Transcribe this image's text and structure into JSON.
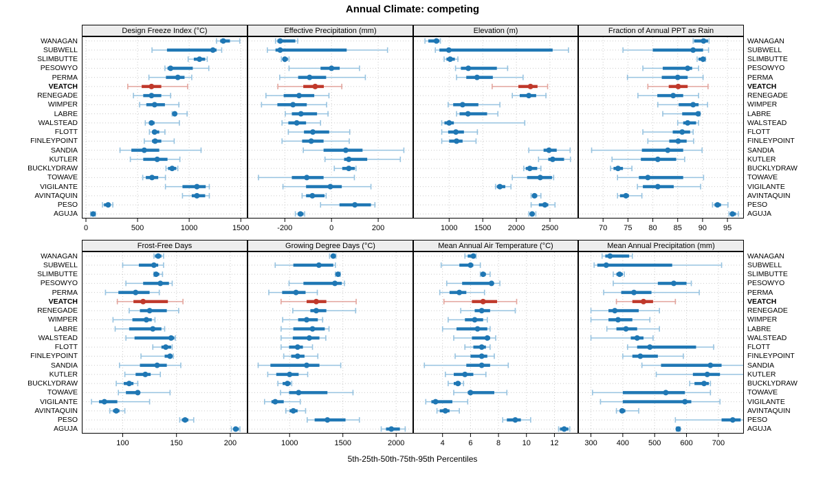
{
  "figure": {
    "title": "Annual Climate: competing",
    "caption": "5th-25th-50th-75th-95th Percentiles"
  },
  "percentile_labels": [
    "5th",
    "25th",
    "50th",
    "75th",
    "95th"
  ],
  "stations": [
    "WANAGAN",
    "SUBWELL",
    "SLIMBUTTE",
    "PESOWYO",
    "PERMA",
    "VEATCH",
    "RENEGADE",
    "WIMPER",
    "LABRE",
    "WALSTEAD",
    "FLOTT",
    "FINLEYPOINT",
    "SANDIA",
    "KUTLER",
    "BUCKLYDRAW",
    "TOWAVE",
    "VIGILANTE",
    "AVINTAQUIN",
    "PESO",
    "AGUJA"
  ],
  "highlight_station": "VEATCH",
  "colors": {
    "blue": "#1f77b4",
    "blue_light": "#97c3e0",
    "red": "#c0392b",
    "red_light": "#e3a59d",
    "header_bg": "#ededed",
    "grid": "#c9c9c9",
    "border": "#000000"
  },
  "chart_data": [
    {
      "type": "dot-interval",
      "title": "Design Freeze Index (°C)",
      "ticks": [
        0,
        500,
        1000,
        1500
      ],
      "xlim": [
        -40,
        1565
      ],
      "values": [
        [
          1265,
          1300,
          1330,
          1395,
          1490
        ],
        [
          640,
          785,
          1230,
          1265,
          1315
        ],
        [
          990,
          1045,
          1100,
          1155,
          1175
        ],
        [
          765,
          790,
          820,
          1035,
          1190
        ],
        [
          610,
          775,
          890,
          955,
          1025
        ],
        [
          405,
          540,
          635,
          730,
          985
        ],
        [
          460,
          555,
          635,
          730,
          820
        ],
        [
          520,
          585,
          665,
          765,
          900
        ],
        [
          835,
          845,
          860,
          880,
          980
        ],
        [
          575,
          610,
          635,
          665,
          905
        ],
        [
          615,
          640,
          665,
          710,
          765
        ],
        [
          565,
          640,
          670,
          730,
          855
        ],
        [
          330,
          440,
          565,
          710,
          1115
        ],
        [
          430,
          555,
          690,
          790,
          910
        ],
        [
          775,
          795,
          835,
          875,
          890
        ],
        [
          550,
          580,
          640,
          700,
          770
        ],
        [
          770,
          935,
          1075,
          1160,
          1195
        ],
        [
          935,
          1025,
          1075,
          1155,
          1195
        ],
        [
          160,
          175,
          215,
          240,
          260
        ],
        [
          45,
          58,
          70,
          82,
          92
        ]
      ]
    },
    {
      "type": "dot-interval",
      "title": "Effective Precipitation (mm)",
      "ticks": [
        -200,
        0,
        200
      ],
      "xlim": [
        -360,
        350
      ],
      "values": [
        [
          -240,
          -232,
          -220,
          -155,
          -145
        ],
        [
          -275,
          -240,
          -220,
          65,
          240
        ],
        [
          -215,
          -208,
          -200,
          -187,
          -182
        ],
        [
          -182,
          -47,
          0,
          35,
          120
        ],
        [
          -222,
          -143,
          -94,
          -23,
          145
        ],
        [
          -230,
          -121,
          -70,
          -33,
          44
        ],
        [
          -281,
          -205,
          -139,
          -74,
          -11
        ],
        [
          -300,
          -232,
          -165,
          -106,
          -21
        ],
        [
          -198,
          -170,
          -131,
          -62,
          -15
        ],
        [
          -212,
          -185,
          -149,
          -109,
          -47
        ],
        [
          -185,
          -118,
          -80,
          -10,
          78
        ],
        [
          -212,
          -126,
          -87,
          -34,
          76
        ],
        [
          -121,
          -34,
          61,
          133,
          310
        ],
        [
          -28,
          54,
          74,
          153,
          295
        ],
        [
          12,
          46,
          74,
          100,
          105
        ],
        [
          -313,
          -170,
          -106,
          -34,
          98
        ],
        [
          -208,
          -109,
          -5,
          44,
          169
        ],
        [
          -126,
          -109,
          -82,
          -30,
          -23
        ],
        [
          -47,
          34,
          100,
          169,
          186
        ],
        [
          -155,
          -145,
          -133,
          -120,
          -115
        ]
      ]
    },
    {
      "type": "dot-interval",
      "title": "Elevation (m)",
      "ticks": [
        1000,
        1500,
        2000,
        2500
      ],
      "xlim": [
        465,
        2920
      ],
      "values": [
        [
          640,
          690,
          810,
          855,
          870
        ],
        [
          795,
          855,
          995,
          2540,
          2775
        ],
        [
          925,
          960,
          1015,
          1085,
          1130
        ],
        [
          1095,
          1175,
          1285,
          1710,
          1870
        ],
        [
          1110,
          1255,
          1415,
          1650,
          2100
        ],
        [
          1640,
          2030,
          2210,
          2315,
          2465
        ],
        [
          1940,
          2050,
          2185,
          2295,
          2440
        ],
        [
          985,
          1060,
          1200,
          1435,
          1755
        ],
        [
          1110,
          1155,
          1280,
          1565,
          1725
        ],
        [
          890,
          930,
          1000,
          1070,
          2125
        ],
        [
          890,
          985,
          1100,
          1220,
          1420
        ],
        [
          890,
          1000,
          1110,
          1200,
          1400
        ],
        [
          2185,
          2405,
          2485,
          2600,
          2800
        ],
        [
          2330,
          2475,
          2540,
          2710,
          2805
        ],
        [
          2110,
          2140,
          2200,
          2310,
          2365
        ],
        [
          1940,
          2160,
          2355,
          2530,
          2555
        ],
        [
          1690,
          1710,
          1755,
          1835,
          1920
        ],
        [
          2220,
          2235,
          2270,
          2310,
          2365
        ],
        [
          2220,
          2335,
          2425,
          2475,
          2575
        ],
        [
          2185,
          2200,
          2235,
          2270,
          2290
        ]
      ]
    },
    {
      "type": "dot-interval",
      "title": "Fraction of Annual PPT as Rain",
      "ticks": [
        70,
        75,
        80,
        85,
        90,
        95
      ],
      "xlim": [
        65,
        98.3
      ],
      "values": [
        [
          88.1,
          88.3,
          90.2,
          91.1,
          91.3
        ],
        [
          74,
          80,
          88.1,
          90.1,
          91.2
        ],
        [
          88.9,
          89.2,
          90.1,
          90.4,
          90.6
        ],
        [
          78,
          82,
          87,
          87.9,
          89.2
        ],
        [
          74.9,
          81.8,
          85,
          87,
          90.1
        ],
        [
          79,
          83.2,
          85.1,
          87,
          91.1
        ],
        [
          77,
          80.9,
          84.1,
          86.1,
          89.2
        ],
        [
          81,
          85.2,
          88.1,
          89.2,
          91
        ],
        [
          82,
          85.9,
          89.1,
          89.3,
          89.5
        ],
        [
          85,
          86.1,
          87,
          88.7,
          89.2
        ],
        [
          78,
          84,
          85.9,
          87.5,
          88.1
        ],
        [
          79,
          83.3,
          85.1,
          86.8,
          88.2
        ],
        [
          67.7,
          77.8,
          83,
          86.1,
          89.9
        ],
        [
          71.8,
          77.6,
          81,
          84.7,
          86.4
        ],
        [
          71.5,
          72.1,
          73,
          74,
          75.8
        ],
        [
          72.9,
          77.2,
          79,
          86.1,
          90.2
        ],
        [
          76.9,
          78,
          81,
          84.2,
          89.6
        ],
        [
          72.9,
          73.4,
          74.6,
          75.2,
          77.8
        ],
        [
          92,
          92.4,
          93,
          93.7,
          95.1
        ],
        [
          95.3,
          95.6,
          96,
          96.7,
          97.2
        ]
      ]
    },
    {
      "type": "dot-interval",
      "title": "Frost-Free Days",
      "ticks": [
        100,
        150,
        200
      ],
      "xlim": [
        62,
        216
      ],
      "values": [
        [
          129,
          130,
          133,
          136,
          138
        ],
        [
          100,
          115,
          129,
          133,
          138
        ],
        [
          129,
          130,
          131,
          134,
          137
        ],
        [
          103,
          119,
          135,
          143,
          146
        ],
        [
          84,
          96,
          112,
          125,
          134
        ],
        [
          95,
          110,
          119,
          142,
          156
        ],
        [
          106,
          116,
          125,
          141,
          152
        ],
        [
          91,
          109,
          122,
          127,
          130
        ],
        [
          93,
          106,
          128,
          136,
          139
        ],
        [
          103,
          111,
          145,
          148,
          149
        ],
        [
          128,
          136,
          140,
          145,
          146
        ],
        [
          117,
          139,
          144,
          146,
          147
        ],
        [
          97,
          116,
          132,
          141,
          154
        ],
        [
          102,
          112,
          121,
          126,
          135
        ],
        [
          94,
          101,
          106,
          110,
          114
        ],
        [
          96,
          103,
          114,
          116,
          144
        ],
        [
          71,
          78,
          83,
          95,
          125
        ],
        [
          88,
          91,
          94,
          97,
          102
        ],
        [
          153,
          155,
          158,
          161,
          166
        ],
        [
          201,
          203,
          205,
          208,
          209
        ]
      ]
    },
    {
      "type": "dot-interval",
      "title": "Growing Degree Days (°C)",
      "ticks": [
        1000,
        1500,
        2000
      ],
      "xlim": [
        605,
        2160
      ],
      "values": [
        [
          1375,
          1390,
          1410,
          1430,
          1435
        ],
        [
          865,
          1035,
          1275,
          1410,
          1430
        ],
        [
          1430,
          1440,
          1455,
          1470,
          1475
        ],
        [
          995,
          1130,
          1425,
          1490,
          1515
        ],
        [
          805,
          930,
          1060,
          1150,
          1260
        ],
        [
          920,
          1160,
          1250,
          1345,
          1625
        ],
        [
          1030,
          1195,
          1250,
          1345,
          1620
        ],
        [
          935,
          1080,
          1160,
          1265,
          1310
        ],
        [
          920,
          1035,
          1215,
          1330,
          1370
        ],
        [
          920,
          1030,
          1185,
          1280,
          1340
        ],
        [
          920,
          995,
          1075,
          1125,
          1215
        ],
        [
          945,
          1015,
          1075,
          1140,
          1265
        ],
        [
          705,
          820,
          1160,
          1280,
          1480
        ],
        [
          795,
          875,
          1000,
          1085,
          1170
        ],
        [
          890,
          935,
          980,
          1010,
          1020
        ],
        [
          915,
          995,
          1085,
          1355,
          1595
        ],
        [
          765,
          830,
          865,
          945,
          1100
        ],
        [
          965,
          1000,
          1035,
          1075,
          1150
        ],
        [
          1165,
          1235,
          1355,
          1525,
          1655
        ],
        [
          1860,
          1905,
          1955,
          2035,
          2085
        ]
      ]
    },
    {
      "type": "dot-interval",
      "title": "Mean Annual Air Temperature (°C)",
      "ticks": [
        4,
        6,
        8,
        10,
        12
      ],
      "xlim": [
        1.9,
        13.7
      ],
      "values": [
        [
          5.6,
          5.8,
          6.2,
          6.3,
          6.4
        ],
        [
          3.9,
          5.2,
          6,
          6.2,
          6.7
        ],
        [
          6.7,
          6.8,
          6.9,
          7.1,
          7.4
        ],
        [
          4.3,
          5.4,
          7.5,
          7.6,
          8.1
        ],
        [
          3.8,
          4.5,
          5.2,
          5.7,
          7
        ],
        [
          4.1,
          6.1,
          6.9,
          7.9,
          9.3
        ],
        [
          5.3,
          6.3,
          6.8,
          7.4,
          9.2
        ],
        [
          4.4,
          5.6,
          6.3,
          6.9,
          7.2
        ],
        [
          4,
          5,
          6.5,
          7.2,
          7.4
        ],
        [
          4.8,
          6.1,
          7.2,
          7.4,
          7.8
        ],
        [
          5.6,
          6.2,
          6.8,
          7.1,
          7.4
        ],
        [
          4.9,
          6,
          6.8,
          7.2,
          7.7
        ],
        [
          2.7,
          5.7,
          6.8,
          7.4,
          8.7
        ],
        [
          4.2,
          4.8,
          5.6,
          6.2,
          7.1
        ],
        [
          4.4,
          4.8,
          5.1,
          5.3,
          5.5
        ],
        [
          4.8,
          5.8,
          6,
          7.7,
          8.6
        ],
        [
          2.8,
          3.2,
          3.5,
          4.7,
          5.8
        ],
        [
          3.6,
          3.8,
          4.2,
          4.5,
          5.2
        ],
        [
          8.3,
          8.6,
          9.2,
          9.6,
          10.3
        ],
        [
          12.3,
          12.4,
          12.7,
          13,
          13.1
        ]
      ]
    },
    {
      "type": "dot-interval",
      "title": "Mean Annual Precipitation (mm)",
      "ticks": [
        300,
        400,
        500,
        600,
        700
      ],
      "xlim": [
        260,
        780
      ],
      "values": [
        [
          335,
          345,
          360,
          420,
          430
        ],
        [
          310,
          320,
          348,
          555,
          710
        ],
        [
          370,
          380,
          390,
          400,
          405
        ],
        [
          370,
          510,
          560,
          600,
          615
        ],
        [
          340,
          395,
          435,
          490,
          640
        ],
        [
          380,
          430,
          465,
          495,
          565
        ],
        [
          300,
          355,
          375,
          450,
          515
        ],
        [
          300,
          355,
          385,
          430,
          485
        ],
        [
          350,
          380,
          410,
          445,
          515
        ],
        [
          300,
          425,
          445,
          465,
          495
        ],
        [
          415,
          445,
          485,
          630,
          685
        ],
        [
          400,
          430,
          455,
          510,
          590
        ],
        [
          460,
          520,
          675,
          710,
          790
        ],
        [
          505,
          620,
          665,
          705,
          800
        ],
        [
          610,
          625,
          655,
          670,
          675
        ],
        [
          305,
          400,
          535,
          595,
          675
        ],
        [
          330,
          400,
          595,
          615,
          705
        ],
        [
          380,
          390,
          398,
          408,
          450
        ],
        [
          565,
          710,
          745,
          770,
          790
        ],
        [
          568,
          571,
          574,
          577,
          580
        ]
      ]
    }
  ]
}
